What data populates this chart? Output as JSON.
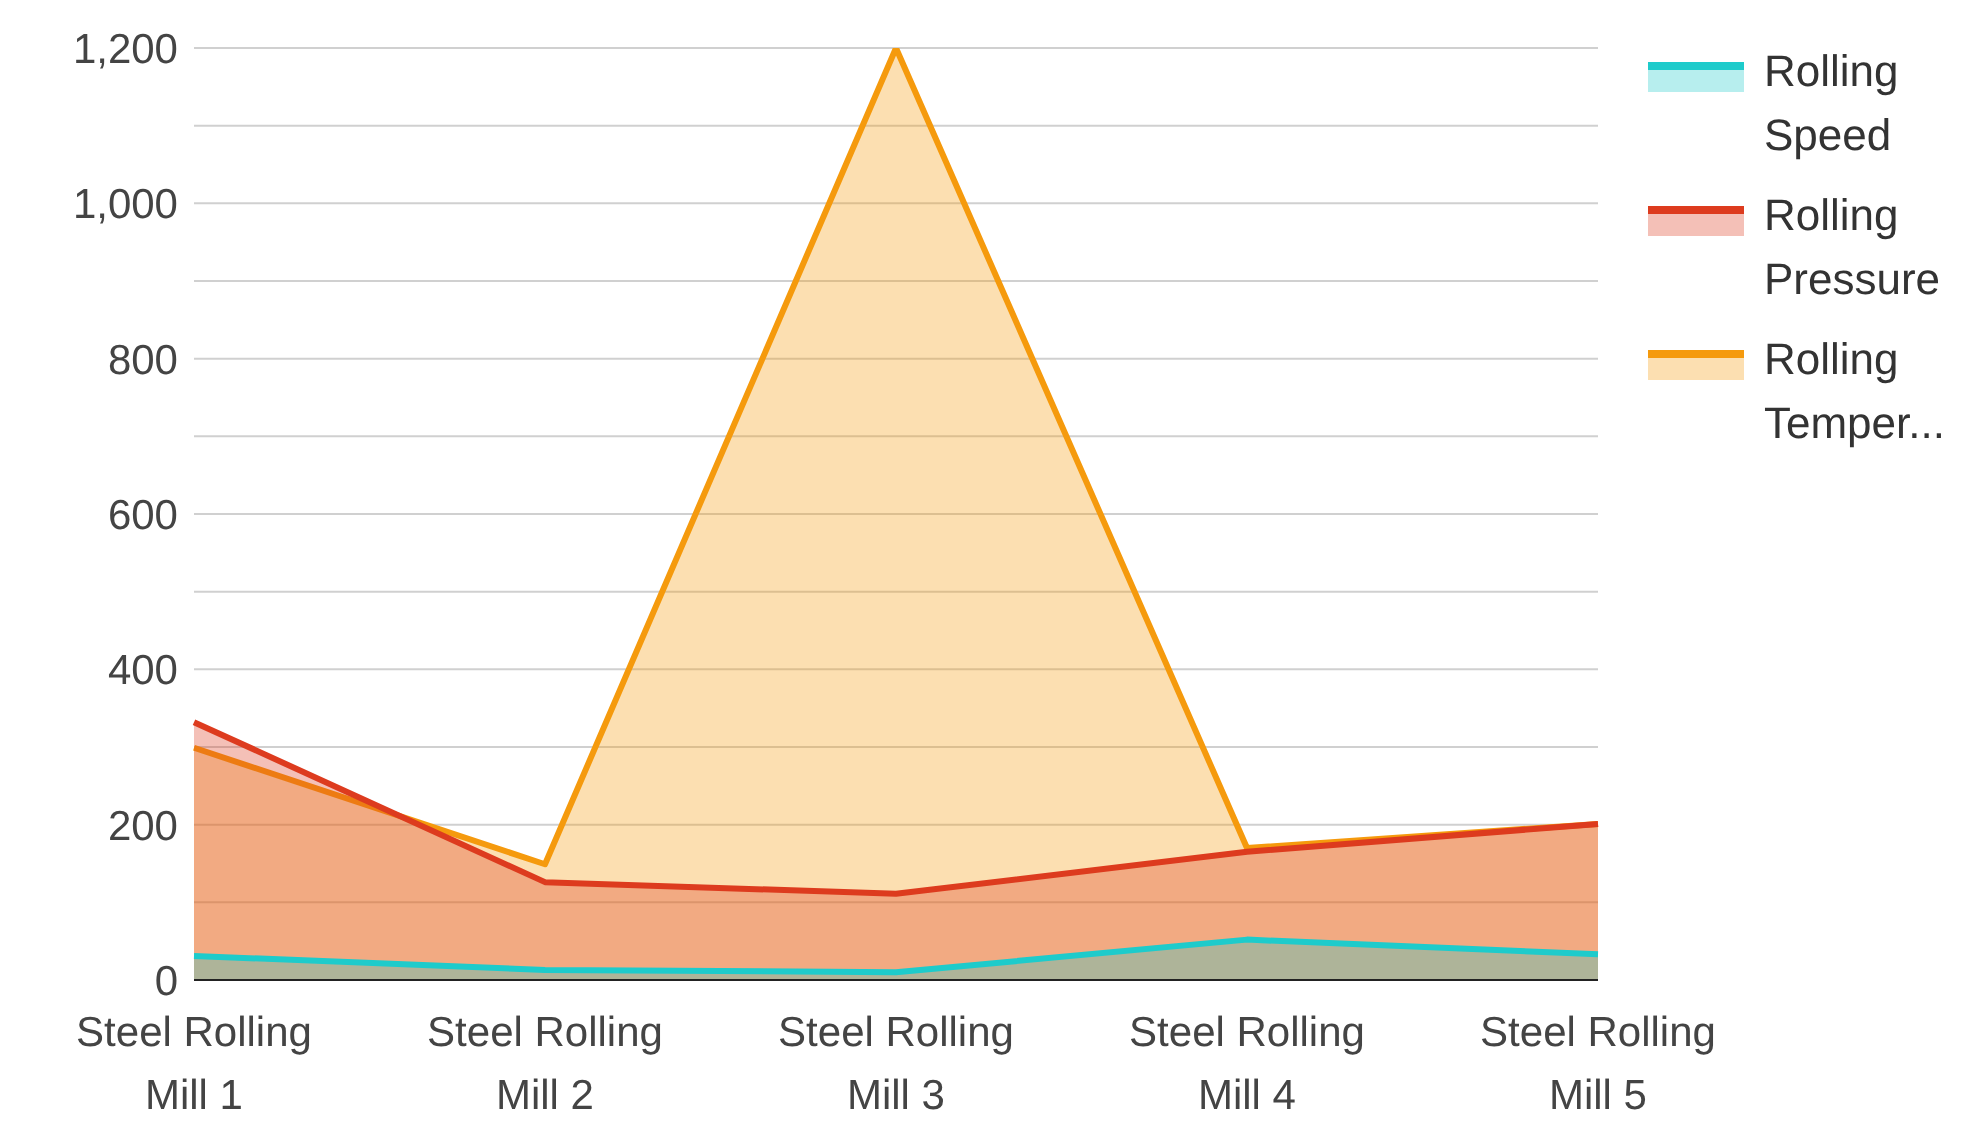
{
  "chart_data": {
    "type": "area",
    "categories": [
      "Steel Rolling Mill 1",
      "Steel Rolling Mill 2",
      "Steel Rolling Mill 3",
      "Steel Rolling Mill 4",
      "Steel Rolling Mill 5"
    ],
    "series": [
      {
        "name": "Rolling Speed",
        "color": "#1ecbcb",
        "values": [
          31,
          13,
          10,
          52,
          33
        ]
      },
      {
        "name": "Rolling Pressure",
        "color": "#dd3b1e",
        "values": [
          332,
          126,
          111,
          165,
          201
        ]
      },
      {
        "name": "Rolling Temper...",
        "color": "#f59a0d",
        "values": [
          299,
          149,
          1200,
          170,
          201
        ]
      }
    ],
    "ylim": [
      0,
      1200
    ],
    "yticks": [
      0,
      {
        "value": 100,
        "label": null
      },
      200,
      {
        "value": 300,
        "label": null
      },
      400,
      {
        "value": 500,
        "label": null
      },
      600,
      {
        "value": 700,
        "label": null
      },
      800,
      {
        "value": 900,
        "label": null
      },
      {
        "value": 1000,
        "label": "1,000"
      },
      {
        "value": 1100,
        "label": null
      },
      {
        "value": 1200,
        "label": "1,200"
      }
    ],
    "grid": "y",
    "legend": "right"
  }
}
